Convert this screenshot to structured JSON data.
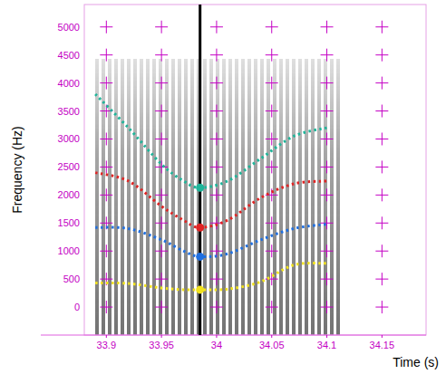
{
  "chart_data": {
    "type": "line",
    "x_label": "Time (s)",
    "y_label": "Frequency (Hz)",
    "x": [
      33.89,
      33.92,
      33.95,
      33.97,
      33.985,
      34.01,
      34.04,
      34.07,
      34.1
    ],
    "series": [
      {
        "color": "#1fb59a",
        "line_style": "dotted",
        "values": [
          3800,
          3200,
          2550,
          2250,
          2130,
          2250,
          2650,
          3050,
          3200
        ]
      },
      {
        "color": "#e02424",
        "line_style": "dotted",
        "values": [
          2400,
          2250,
          1800,
          1550,
          1420,
          1550,
          1950,
          2200,
          2250
        ]
      },
      {
        "color": "#1f6fe0",
        "line_style": "dotted",
        "values": [
          1420,
          1400,
          1200,
          1000,
          900,
          950,
          1200,
          1400,
          1480
        ]
      },
      {
        "color": "#f2e21e",
        "line_style": "dotted",
        "values": [
          430,
          420,
          340,
          310,
          310,
          320,
          450,
          750,
          780
        ]
      }
    ],
    "cursor": {
      "x": 33.985,
      "values": [
        2130,
        1420,
        900,
        310
      ]
    },
    "xlim": [
      33.88,
      34.19
    ],
    "ylim": [
      -500,
      5400
    ],
    "xticks": [
      33.9,
      33.95,
      34,
      34.05,
      34.1,
      34.15
    ],
    "yticks": [
      0,
      500,
      1000,
      1500,
      2000,
      2500,
      3000,
      3500,
      4000,
      4500,
      5000
    ],
    "grid": true
  }
}
